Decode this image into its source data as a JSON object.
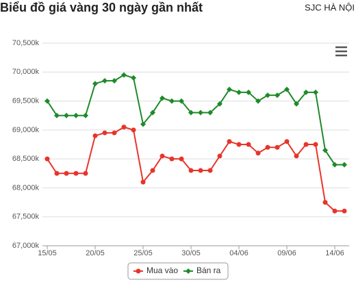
{
  "chart_data": {
    "type": "line",
    "title": "Biểu đồ giá vàng 30 ngày gần nhất",
    "subtitle": "SJC HÀ NỘI",
    "categories": [
      "15/05",
      null,
      null,
      null,
      null,
      "20/05",
      null,
      null,
      null,
      null,
      "25/05",
      null,
      null,
      null,
      null,
      "30/05",
      null,
      null,
      null,
      null,
      "04/06",
      null,
      null,
      null,
      null,
      "09/06",
      null,
      null,
      null,
      null,
      "14/06",
      null
    ],
    "series": [
      {
        "name": "Mua vào",
        "color": "#e8342a",
        "values": [
          68500,
          68250,
          68250,
          68250,
          68250,
          68900,
          68950,
          68950,
          69050,
          69000,
          68100,
          68300,
          68550,
          68500,
          68500,
          68300,
          68300,
          68300,
          68550,
          68800,
          68750,
          68750,
          68600,
          68700,
          68700,
          68800,
          68550,
          68750,
          68750,
          67750,
          67600,
          67600
        ]
      },
      {
        "name": "Bán ra",
        "color": "#1e8a2a",
        "values": [
          69500,
          69250,
          69250,
          69250,
          69250,
          69800,
          69850,
          69850,
          69950,
          69900,
          69100,
          69300,
          69550,
          69500,
          69500,
          69300,
          69300,
          69300,
          69450,
          69700,
          69650,
          69650,
          69500,
          69600,
          69600,
          69700,
          69450,
          69650,
          69650,
          68650,
          68400,
          68400
        ]
      }
    ],
    "ylim": [
      67000,
      70500
    ],
    "yticks": [
      {
        "value": 67000,
        "label": "67,000k"
      },
      {
        "value": 67500,
        "label": "67,500k"
      },
      {
        "value": 68000,
        "label": "68,000k"
      },
      {
        "value": 68500,
        "label": "68,500k"
      },
      {
        "value": 69000,
        "label": "69,000k"
      },
      {
        "value": 69500,
        "label": "69,500k"
      },
      {
        "value": 70000,
        "label": "70,000k"
      },
      {
        "value": 70500,
        "label": "70,500k"
      }
    ],
    "grid": true
  }
}
